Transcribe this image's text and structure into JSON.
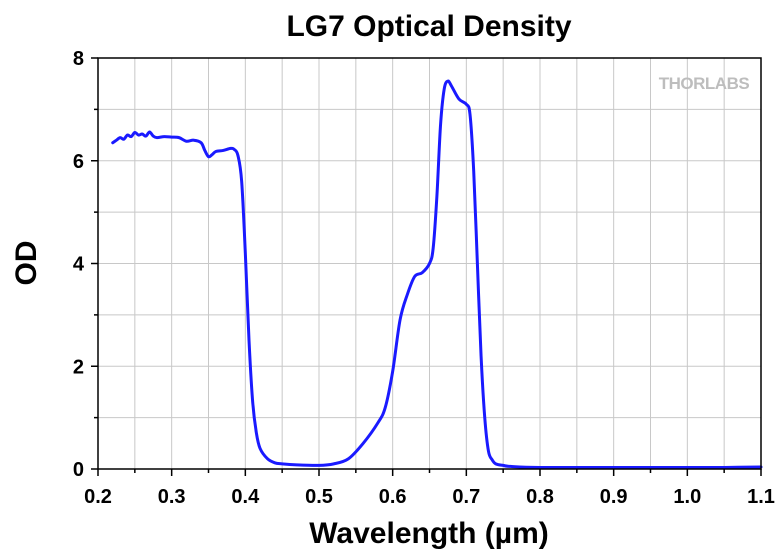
{
  "chart_data": {
    "type": "line",
    "title": "LG7 Optical Density",
    "xlabel": "Wavelength (µm)",
    "ylabel": "OD",
    "xlim": [
      0.2,
      1.1
    ],
    "ylim": [
      0,
      8
    ],
    "x_ticks": [
      0.2,
      0.3,
      0.4,
      0.5,
      0.6,
      0.7,
      0.8,
      0.9,
      1.0,
      1.1
    ],
    "x_tick_labels": [
      "0.2",
      "0.3",
      "0.4",
      "0.5",
      "0.6",
      "0.7",
      "0.8",
      "0.9",
      "1.0",
      "1.1"
    ],
    "y_ticks": [
      0,
      2,
      4,
      6,
      8
    ],
    "y_tick_labels": [
      "0",
      "2",
      "4",
      "6",
      "8"
    ],
    "grid": true,
    "watermark": "THORLABS",
    "line_color": "#1a1aff",
    "series": [
      {
        "x": [
          0.22,
          0.225,
          0.23,
          0.235,
          0.24,
          0.245,
          0.25,
          0.255,
          0.26,
          0.265,
          0.27,
          0.275,
          0.28,
          0.29,
          0.3,
          0.31,
          0.32,
          0.33,
          0.34,
          0.345,
          0.35,
          0.355,
          0.36,
          0.37,
          0.38,
          0.385,
          0.39,
          0.395,
          0.4,
          0.405,
          0.41,
          0.415,
          0.42,
          0.43,
          0.44,
          0.45,
          0.47,
          0.5,
          0.52,
          0.54,
          0.56,
          0.58,
          0.59,
          0.6,
          0.61,
          0.62,
          0.63,
          0.64,
          0.65,
          0.655,
          0.66,
          0.665,
          0.67,
          0.675,
          0.68,
          0.69,
          0.7,
          0.705,
          0.71,
          0.715,
          0.72,
          0.725,
          0.73,
          0.735,
          0.74,
          0.75,
          0.76,
          0.8,
          0.9,
          1.0,
          1.05,
          1.1
        ],
        "y": [
          6.35,
          6.4,
          6.45,
          6.42,
          6.5,
          6.47,
          6.55,
          6.5,
          6.52,
          6.48,
          6.56,
          6.48,
          6.45,
          6.47,
          6.46,
          6.45,
          6.38,
          6.4,
          6.35,
          6.2,
          6.08,
          6.12,
          6.18,
          6.2,
          6.24,
          6.22,
          6.1,
          5.6,
          4.2,
          2.5,
          1.3,
          0.7,
          0.4,
          0.2,
          0.12,
          0.1,
          0.08,
          0.07,
          0.1,
          0.2,
          0.5,
          0.9,
          1.2,
          1.9,
          2.9,
          3.4,
          3.75,
          3.82,
          4.0,
          4.3,
          5.3,
          6.7,
          7.4,
          7.55,
          7.45,
          7.2,
          7.1,
          6.9,
          5.8,
          4.0,
          2.2,
          1.0,
          0.35,
          0.18,
          0.1,
          0.07,
          0.05,
          0.03,
          0.03,
          0.03,
          0.03,
          0.04
        ]
      }
    ]
  }
}
